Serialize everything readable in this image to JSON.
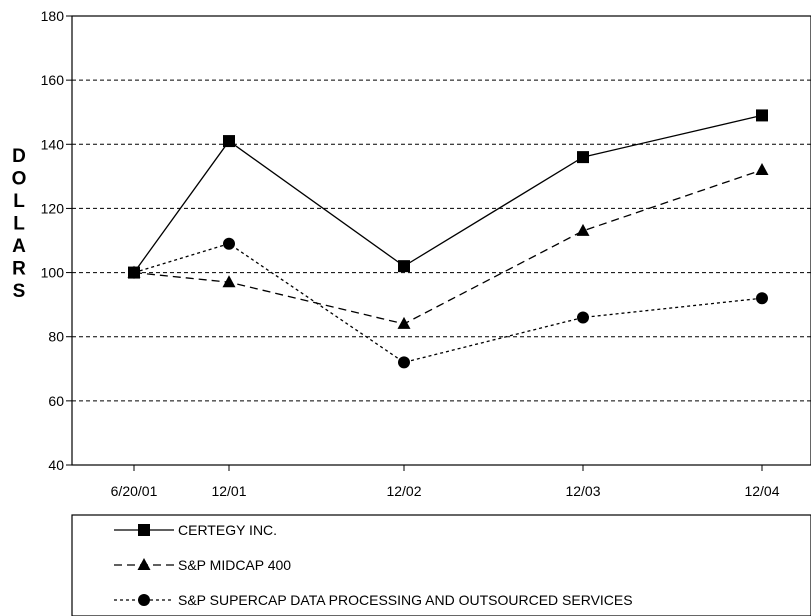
{
  "chart_data": {
    "type": "line",
    "title": "",
    "xlabel": "",
    "ylabel": "DOLLARS",
    "categories": [
      "6/20/01",
      "12/01",
      "12/02",
      "12/03",
      "12/04"
    ],
    "ylim": [
      40,
      180
    ],
    "yticks": [
      40,
      60,
      80,
      100,
      120,
      140,
      160,
      180
    ],
    "grid": true,
    "legend_position": "bottom",
    "series": [
      {
        "name": "CERTEGY INC.",
        "values": [
          100,
          141,
          102,
          136,
          149
        ],
        "marker": "square",
        "line_style": "solid",
        "color": "#000000"
      },
      {
        "name": "S&P MIDCAP 400",
        "values": [
          100,
          97,
          84,
          113,
          132
        ],
        "marker": "triangle",
        "line_style": "dashed",
        "color": "#000000"
      },
      {
        "name": "S&P SUPERCAP DATA PROCESSING AND OUTSOURCED SERVICES",
        "values": [
          100,
          109,
          72,
          86,
          92
        ],
        "marker": "circle",
        "line_style": "dotted",
        "color": "#000000"
      }
    ]
  }
}
